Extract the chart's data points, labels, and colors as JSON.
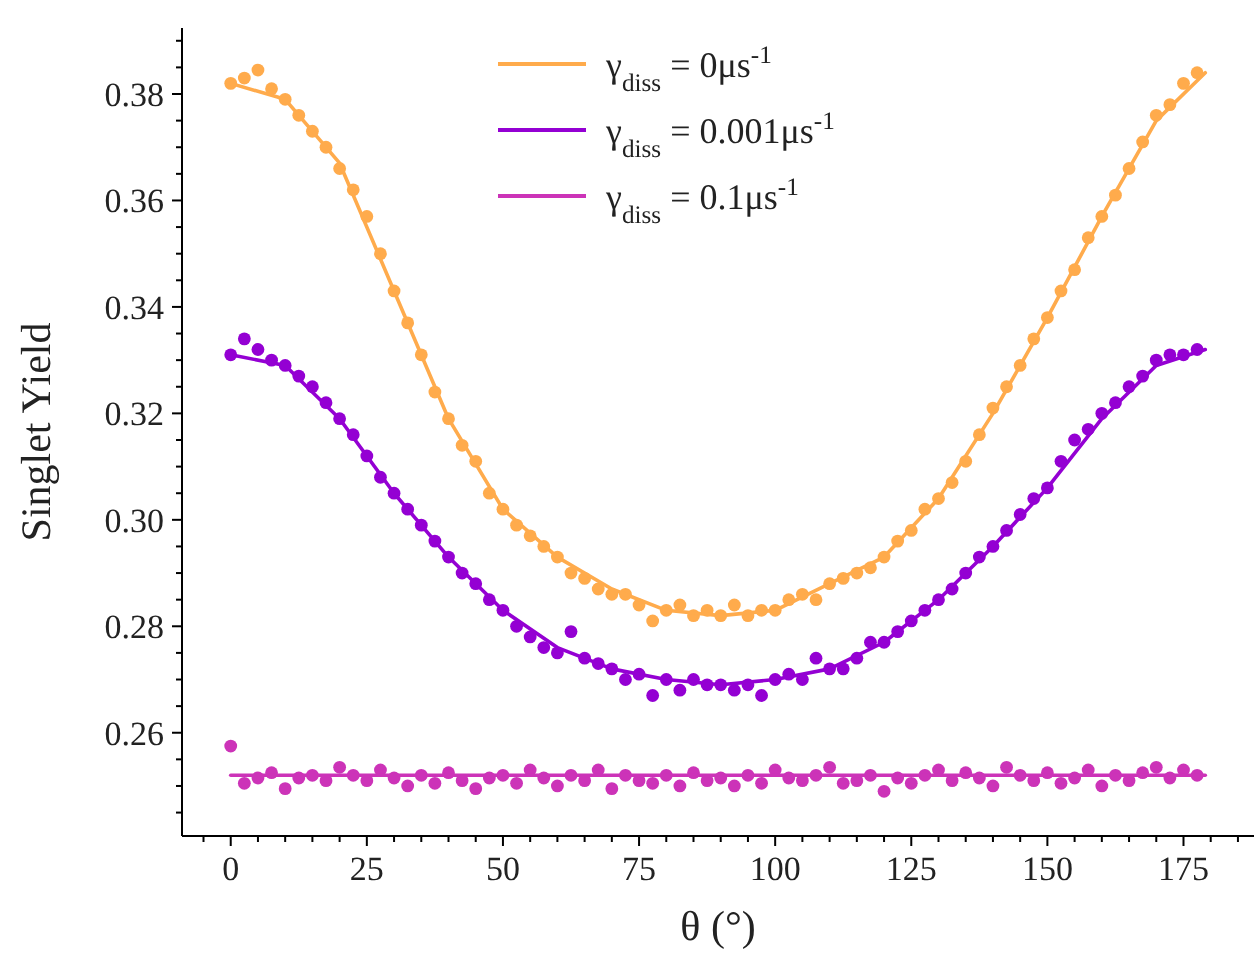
{
  "chart_data": {
    "type": "scatter",
    "xlabel": "θ (°)",
    "ylabel": "Singlet Yield",
    "xlim": [
      -8.95,
      187.95
    ],
    "ylim": [
      0.2406,
      0.3924
    ],
    "xticks": [
      {
        "value": -5,
        "label": null
      },
      0,
      {
        "value": 5,
        "label": null
      },
      {
        "value": 10,
        "label": null
      },
      {
        "value": 15,
        "label": null
      },
      {
        "value": 20,
        "label": null
      },
      25,
      {
        "value": 30,
        "label": null
      },
      {
        "value": 35,
        "label": null
      },
      {
        "value": 40,
        "label": null
      },
      {
        "value": 45,
        "label": null
      },
      50,
      {
        "value": 55,
        "label": null
      },
      {
        "value": 60,
        "label": null
      },
      {
        "value": 65,
        "label": null
      },
      {
        "value": 70,
        "label": null
      },
      75,
      {
        "value": 80,
        "label": null
      },
      {
        "value": 85,
        "label": null
      },
      {
        "value": 90,
        "label": null
      },
      {
        "value": 95,
        "label": null
      },
      100,
      {
        "value": 105,
        "label": null
      },
      {
        "value": 110,
        "label": null
      },
      {
        "value": 115,
        "label": null
      },
      {
        "value": 120,
        "label": null
      },
      125,
      {
        "value": 130,
        "label": null
      },
      {
        "value": 135,
        "label": null
      },
      {
        "value": 140,
        "label": null
      },
      {
        "value": 145,
        "label": null
      },
      150,
      {
        "value": 155,
        "label": null
      },
      {
        "value": 160,
        "label": null
      },
      {
        "value": 165,
        "label": null
      },
      {
        "value": 170,
        "label": null
      },
      175,
      {
        "value": 180,
        "label": null
      },
      {
        "value": 185,
        "label": null
      }
    ],
    "yticks": [
      {
        "value": 0.245,
        "label": null
      },
      {
        "value": 0.25,
        "label": null
      },
      {
        "value": 0.255,
        "label": null
      },
      {
        "value": 0.26,
        "label": "0.26"
      },
      {
        "value": 0.265,
        "label": null
      },
      {
        "value": 0.27,
        "label": null
      },
      {
        "value": 0.275,
        "label": null
      },
      {
        "value": 0.28,
        "label": "0.28"
      },
      {
        "value": 0.285,
        "label": null
      },
      {
        "value": 0.29,
        "label": null
      },
      {
        "value": 0.295,
        "label": null
      },
      {
        "value": 0.3,
        "label": "0.30"
      },
      {
        "value": 0.305,
        "label": null
      },
      {
        "value": 0.31,
        "label": null
      },
      {
        "value": 0.315,
        "label": null
      },
      {
        "value": 0.32,
        "label": "0.32"
      },
      {
        "value": 0.325,
        "label": null
      },
      {
        "value": 0.33,
        "label": null
      },
      {
        "value": 0.335,
        "label": null
      },
      {
        "value": 0.34,
        "label": "0.34"
      },
      {
        "value": 0.345,
        "label": null
      },
      {
        "value": 0.35,
        "label": null
      },
      {
        "value": 0.355,
        "label": null
      },
      {
        "value": 0.36,
        "label": "0.36"
      },
      {
        "value": 0.365,
        "label": null
      },
      {
        "value": 0.37,
        "label": null
      },
      {
        "value": 0.375,
        "label": null
      },
      {
        "value": 0.38,
        "label": "0.38"
      },
      {
        "value": 0.385,
        "label": null
      },
      {
        "value": 0.39,
        "label": null
      }
    ],
    "grid": false,
    "legend": "top",
    "marker": "circle",
    "x": [
      0,
      2.5,
      5,
      7.5,
      10,
      12.5,
      15,
      17.5,
      20,
      22.5,
      25,
      27.5,
      30,
      32.5,
      35,
      37.5,
      40,
      42.5,
      45,
      47.5,
      50,
      52.5,
      55,
      57.5,
      60,
      62.5,
      65,
      67.5,
      70,
      72.5,
      75,
      77.5,
      80,
      82.5,
      85,
      87.5,
      90,
      92.5,
      95,
      97.5,
      100,
      102.5,
      105,
      107.5,
      110,
      112.5,
      115,
      117.5,
      120,
      122.5,
      125,
      127.5,
      130,
      132.5,
      135,
      137.5,
      140,
      142.5,
      145,
      147.5,
      150,
      152.5,
      155,
      157.5,
      160,
      162.5,
      165,
      167.5,
      170,
      172.5,
      175,
      177.5
    ],
    "series": [
      {
        "color": "#ffab4c",
        "values": [
          0.382,
          0.383,
          0.3845,
          0.381,
          0.379,
          0.376,
          0.373,
          0.37,
          0.366,
          0.362,
          0.357,
          0.35,
          0.343,
          0.337,
          0.331,
          0.324,
          0.319,
          0.314,
          0.311,
          0.305,
          0.302,
          0.299,
          0.297,
          0.295,
          0.293,
          0.29,
          0.289,
          0.287,
          0.286,
          0.286,
          0.284,
          0.281,
          0.283,
          0.284,
          0.282,
          0.283,
          0.282,
          0.284,
          0.282,
          0.283,
          0.283,
          0.285,
          0.286,
          0.285,
          0.288,
          0.289,
          0.29,
          0.291,
          0.293,
          0.296,
          0.298,
          0.302,
          0.304,
          0.307,
          0.311,
          0.316,
          0.321,
          0.325,
          0.329,
          0.334,
          0.338,
          0.343,
          0.347,
          0.353,
          0.357,
          0.361,
          0.366,
          0.371,
          0.376,
          0.378,
          0.382,
          0.384
        ]
      },
      {
        "color": "#9400d3",
        "values": [
          0.331,
          0.334,
          0.332,
          0.33,
          0.329,
          0.327,
          0.325,
          0.322,
          0.319,
          0.316,
          0.312,
          0.308,
          0.305,
          0.302,
          0.299,
          0.296,
          0.293,
          0.29,
          0.288,
          0.285,
          0.283,
          0.28,
          0.278,
          0.276,
          0.275,
          0.279,
          0.274,
          0.273,
          0.272,
          0.27,
          0.271,
          0.267,
          0.27,
          0.268,
          0.27,
          0.269,
          0.269,
          0.268,
          0.269,
          0.267,
          0.27,
          0.271,
          0.27,
          0.274,
          0.272,
          0.272,
          0.274,
          0.277,
          0.277,
          0.279,
          0.281,
          0.283,
          0.285,
          0.287,
          0.29,
          0.293,
          0.295,
          0.298,
          0.301,
          0.304,
          0.306,
          0.311,
          0.315,
          0.317,
          0.32,
          0.322,
          0.325,
          0.327,
          0.33,
          0.331,
          0.331,
          0.332
        ]
      },
      {
        "color": "#cc33b8",
        "values": [
          0.2575,
          0.2505,
          0.2515,
          0.2525,
          0.2495,
          0.2515,
          0.252,
          0.251,
          0.2535,
          0.252,
          0.251,
          0.253,
          0.2515,
          0.25,
          0.252,
          0.2505,
          0.2525,
          0.251,
          0.2495,
          0.2515,
          0.252,
          0.2505,
          0.253,
          0.2515,
          0.25,
          0.252,
          0.251,
          0.253,
          0.2495,
          0.252,
          0.251,
          0.2505,
          0.252,
          0.25,
          0.2525,
          0.251,
          0.2515,
          0.25,
          0.252,
          0.2505,
          0.253,
          0.2515,
          0.251,
          0.252,
          0.2535,
          0.2505,
          0.251,
          0.252,
          0.249,
          0.2515,
          0.2505,
          0.252,
          0.253,
          0.251,
          0.2525,
          0.2515,
          0.25,
          0.2535,
          0.252,
          0.251,
          0.2525,
          0.2505,
          0.2515,
          0.253,
          0.25,
          0.252,
          0.251,
          0.2525,
          0.2535,
          0.2515,
          0.253,
          0.252
        ]
      },
      {
        "type": "line",
        "marker": "none",
        "name": "γ$_{diss}$ = 0μs$^{-1}$",
        "color": "#ffab4c",
        "x": [
          0,
          10,
          20,
          30,
          40,
          50,
          60,
          70,
          80,
          90,
          100,
          110,
          120,
          130,
          140,
          150,
          160,
          170,
          179
        ],
        "values": [
          0.382,
          0.379,
          0.367,
          0.343,
          0.319,
          0.302,
          0.293,
          0.287,
          0.283,
          0.282,
          0.283,
          0.288,
          0.293,
          0.304,
          0.32,
          0.338,
          0.357,
          0.375,
          0.384
        ]
      },
      {
        "type": "line",
        "marker": "none",
        "name": "γ$_{diss}$ = 0.001μs$^{-1}$",
        "color": "#9400d3",
        "x": [
          0,
          10,
          20,
          30,
          40,
          50,
          60,
          70,
          80,
          90,
          100,
          110,
          120,
          130,
          140,
          150,
          160,
          170,
          179
        ],
        "values": [
          0.331,
          0.329,
          0.319,
          0.305,
          0.293,
          0.283,
          0.276,
          0.272,
          0.27,
          0.269,
          0.27,
          0.272,
          0.277,
          0.285,
          0.295,
          0.306,
          0.319,
          0.329,
          0.332
        ]
      },
      {
        "type": "line",
        "marker": "none",
        "name": "γ$_{diss}$ = 0.1μs$^{-1}$",
        "color": "#cc33b8",
        "x": [
          0,
          179
        ],
        "values": [
          0.252,
          0.252
        ]
      }
    ]
  }
}
